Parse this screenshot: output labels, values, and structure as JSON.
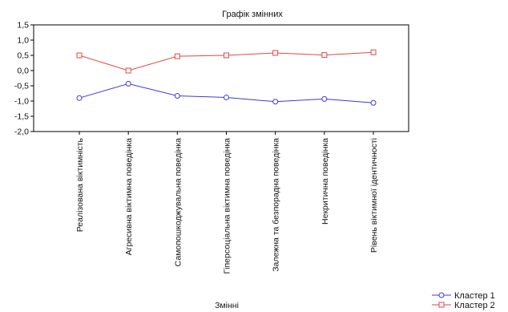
{
  "chart_data": {
    "type": "line",
    "title": "Графік змінних",
    "xlabel": "Змінні",
    "ylabel": "",
    "ylim": [
      -2.0,
      1.5
    ],
    "yticks": [
      "1,5",
      "1,0",
      "0,5",
      "0,0",
      "-0,5",
      "-1,0",
      "-1,5",
      "-2,0"
    ],
    "grid": false,
    "legend_position": "bottom-right",
    "categories": [
      "Реалізована віктимність",
      "Агресивна віктимна поведінка",
      "Самопошкоджувальна поведінка",
      "Гіперсоціальна віктимна поведінка",
      "Залежна та безпорадна поведінка",
      "Некритична поведінка",
      "Рівень віктимної ідентичності"
    ],
    "series": [
      {
        "name": "Кластер 1",
        "color": "#3b3bd6",
        "marker": "circle",
        "values": [
          -0.9,
          -0.43,
          -0.83,
          -0.88,
          -1.02,
          -0.93,
          -1.06
        ]
      },
      {
        "name": "Кластер 2",
        "color": "#e04848",
        "marker": "square",
        "values": [
          0.5,
          0.0,
          0.47,
          0.5,
          0.58,
          0.51,
          0.6
        ]
      }
    ]
  }
}
